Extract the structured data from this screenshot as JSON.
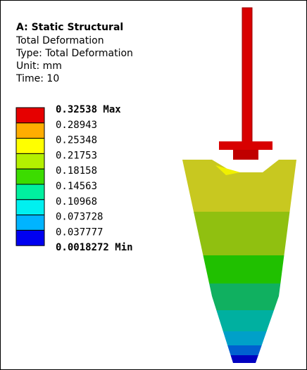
{
  "header": {
    "title": "A: Static Structural",
    "lines": [
      "Total Deformation",
      "Type: Total Deformation",
      "Unit: mm",
      "Time: 10"
    ]
  },
  "legend": {
    "labels": [
      "0.32538 Max",
      "0.28943",
      "0.25348",
      "0.21753",
      "0.18158",
      "0.14563",
      "0.10968",
      "0.073728",
      "0.037777",
      "0.0018272 Min"
    ],
    "colors": [
      "#e60000",
      "#ffad00",
      "#ffff00",
      "#b4f000",
      "#3cdc00",
      "#00f0a0",
      "#00f0f0",
      "#00b4ff",
      "#0000f0"
    ]
  }
}
